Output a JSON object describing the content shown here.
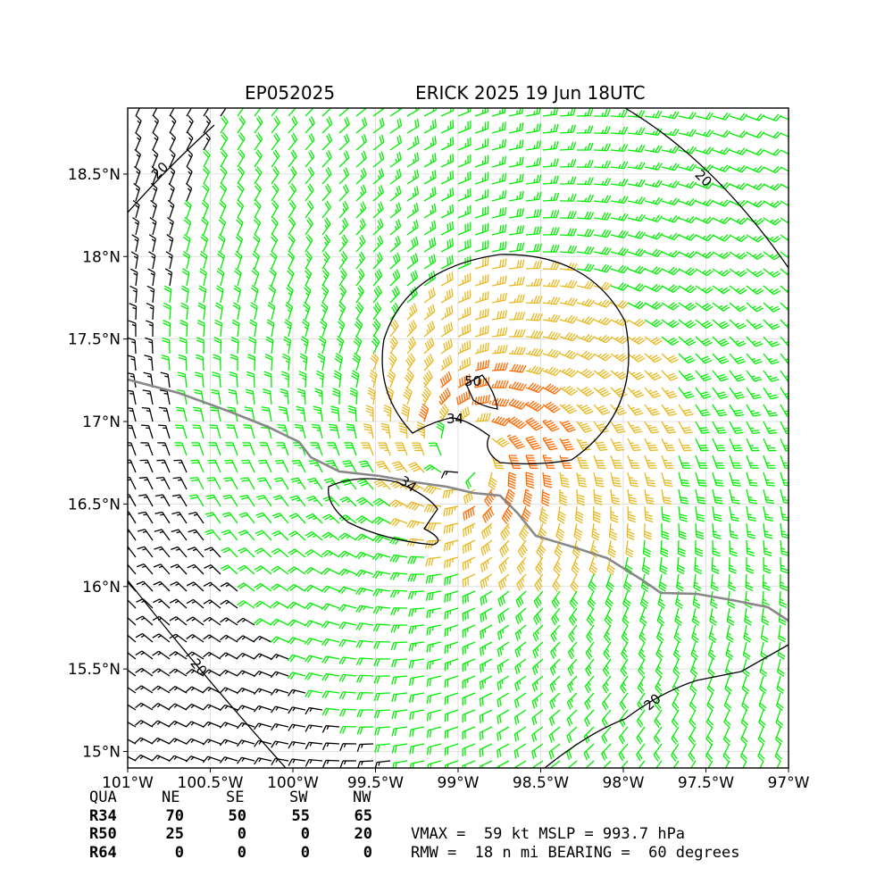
{
  "chart_data": {
    "type": "wind-barb map",
    "title_left": "EP052025",
    "title_right": "ERICK 2025 19 Jun 18UTC",
    "x_ticks": [
      "101°W",
      "100.5°W",
      "100°W",
      "99.5°W",
      "99°W",
      "98.5°W",
      "98°W",
      "97.5°W",
      "97°W"
    ],
    "y_ticks": [
      "15°N",
      "15.5°N",
      "16°N",
      "16.5°N",
      "17°N",
      "17.5°N",
      "18°N",
      "18.5°N"
    ],
    "xlim": [
      -101.0,
      -97.0
    ],
    "ylim": [
      14.9,
      18.9
    ],
    "grid": true,
    "storm_center": {
      "lon": -98.95,
      "lat": 16.8
    },
    "max_wind_kt": 59,
    "rmw_nmi": 18,
    "asymmetry_bearing_deg": 60,
    "contour_labels": [
      "20",
      "20",
      "20",
      "20",
      "34",
      "34",
      "50"
    ],
    "barb_colors": {
      "below_20": "#000000",
      "20_to_34": "#00ee00",
      "34_to_50": "#e8b820",
      "above_50": "#ff6a00"
    },
    "coastline_color": "#888888",
    "wind_radii_table": {
      "header": [
        "QUA",
        "NE",
        "SE",
        "SW",
        "NW"
      ],
      "rows": [
        {
          "label": "R34",
          "values": [
            "70",
            "50",
            "55",
            "65"
          ]
        },
        {
          "label": "R50",
          "values": [
            "25",
            "0",
            "0",
            "20"
          ]
        },
        {
          "label": "R64",
          "values": [
            "0",
            "0",
            "0",
            "0"
          ]
        }
      ]
    },
    "stats_line1": "VMAX =  59 kt MSLP = 993.7 hPa",
    "stats_line2": "RMW =  18 n mi BEARING =  60 degrees"
  }
}
